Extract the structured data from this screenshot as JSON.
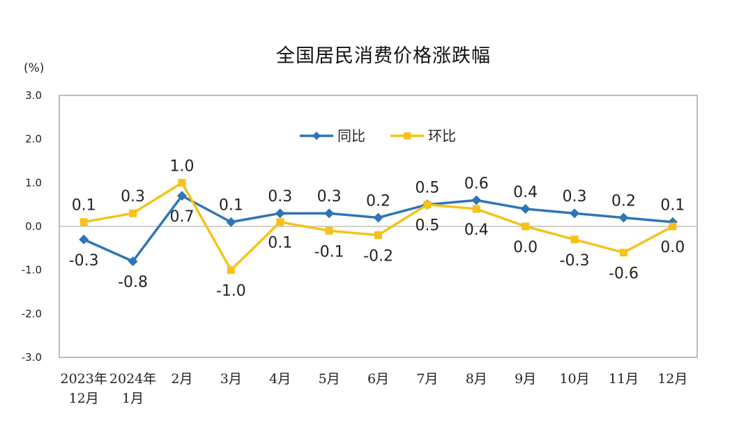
{
  "chart_data": {
    "type": "line",
    "title": "全国居民消费价格涨跌幅",
    "unit": "(%)",
    "ylim": [
      -3.0,
      3.0
    ],
    "yticks": [
      "3.0",
      "2.0",
      "1.0",
      "0.0",
      "-1.0",
      "-2.0",
      "-3.0"
    ],
    "categories": [
      "2023年12月",
      "2024年1月",
      "2月",
      "3月",
      "4月",
      "5月",
      "6月",
      "7月",
      "8月",
      "9月",
      "10月",
      "11月",
      "12月"
    ],
    "category_lines": [
      [
        "2023年",
        "12月"
      ],
      [
        "2024年",
        "1月"
      ],
      [
        "2月"
      ],
      [
        "3月"
      ],
      [
        "4月"
      ],
      [
        "5月"
      ],
      [
        "6月"
      ],
      [
        "7月"
      ],
      [
        "8月"
      ],
      [
        "9月"
      ],
      [
        "10月"
      ],
      [
        "11月"
      ],
      [
        "12月"
      ]
    ],
    "legend_position": "top-center",
    "series": [
      {
        "name": "同比",
        "color": "#2e75b6",
        "marker": "diamond",
        "values": [
          -0.3,
          -0.8,
          0.7,
          0.1,
          0.3,
          0.3,
          0.2,
          0.5,
          0.6,
          0.4,
          0.3,
          0.2,
          0.1
        ],
        "labels": [
          "-0.3",
          "-0.8",
          "0.7",
          "0.1",
          "0.3",
          "0.3",
          "0.2",
          "0.5",
          "0.6",
          "0.4",
          "0.3",
          "0.2",
          "0.1"
        ]
      },
      {
        "name": "环比",
        "color": "#f5c218",
        "marker": "square",
        "values": [
          0.1,
          0.3,
          1.0,
          -1.0,
          0.1,
          -0.1,
          -0.2,
          0.5,
          0.4,
          0.0,
          -0.3,
          -0.6,
          0.0
        ],
        "labels": [
          "0.1",
          "0.3",
          "1.0",
          "-1.0",
          "0.1",
          "-0.1",
          "-0.2",
          "0.5",
          "0.4",
          "0.0",
          "-0.3",
          "-0.6",
          "0.0"
        ]
      }
    ]
  }
}
